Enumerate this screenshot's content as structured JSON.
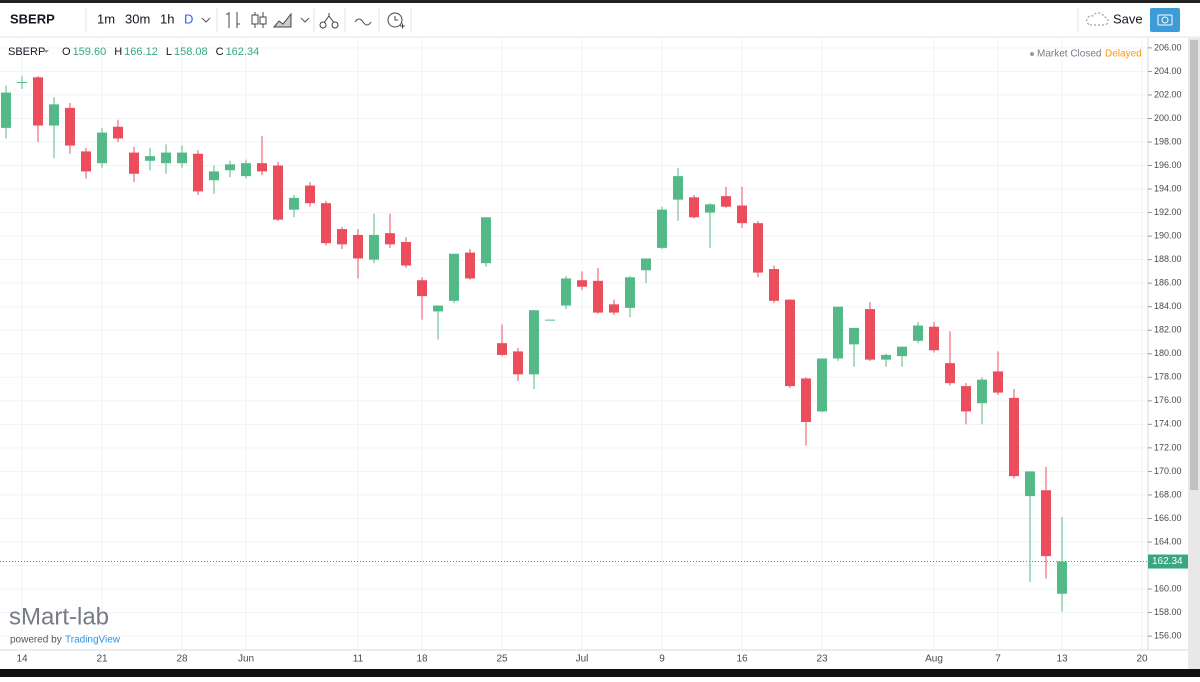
{
  "toolbar": {
    "symbol": "SBERP",
    "intervals": [
      "1m",
      "30m",
      "1h",
      "D"
    ],
    "save": "Save"
  },
  "legend": {
    "symbol": "SBERP",
    "items": [
      {
        "key": "O",
        "value": "159.60"
      },
      {
        "key": "H",
        "value": "166.12"
      },
      {
        "key": "L",
        "value": "158.08"
      },
      {
        "key": "C",
        "value": "162.34"
      }
    ]
  },
  "status": {
    "market": "Market Closed",
    "feed": "Delayed"
  },
  "watermark": {
    "brand": "sMart-lab",
    "powered": "powered by",
    "provider": "TradingView"
  },
  "chart_data": {
    "type": "candlestick",
    "categories": [
      null,
      "14",
      null,
      null,
      null,
      null,
      "21",
      null,
      null,
      null,
      null,
      "28",
      null,
      null,
      null,
      "Jun",
      null,
      null,
      null,
      null,
      null,
      null,
      "11",
      null,
      null,
      null,
      "18",
      null,
      null,
      null,
      null,
      "25",
      null,
      null,
      null,
      null,
      "Jul",
      null,
      null,
      null,
      null,
      "9",
      null,
      null,
      null,
      null,
      "16",
      null,
      null,
      null,
      null,
      "23",
      null,
      null,
      null,
      null,
      null,
      null,
      "Aug",
      null,
      null,
      null,
      "7",
      null,
      null,
      null,
      "13",
      null,
      null,
      null,
      null,
      "20"
    ],
    "open": [
      199.2,
      203.1,
      203.5,
      199.4,
      200.9,
      197.2,
      196.2,
      199.3,
      197.1,
      196.4,
      196.2,
      196.2,
      197.0,
      194.75,
      195.6,
      195.1,
      196.2,
      196.0,
      192.25,
      194.3,
      192.8,
      190.6,
      190.1,
      188.0,
      190.25,
      189.5,
      186.25,
      183.6,
      184.5,
      188.6,
      187.7,
      180.9,
      180.2,
      178.25,
      182.9,
      184.1,
      186.25,
      186.2,
      184.2,
      183.9,
      187.1,
      189.0,
      193.1,
      193.3,
      192.0,
      193.4,
      192.6,
      191.1,
      187.2,
      184.6,
      177.9,
      175.1,
      179.6,
      180.8,
      183.8,
      179.5,
      179.8,
      181.1,
      182.3,
      179.2,
      177.25,
      175.8,
      178.5,
      176.25,
      167.9,
      168.4,
      159.6,
      null,
      null,
      null,
      null,
      null
    ],
    "high": [
      202.8,
      203.6,
      203.6,
      201.8,
      201.3,
      197.5,
      199.2,
      199.9,
      197.6,
      197.5,
      197.8,
      197.7,
      197.3,
      196.0,
      196.4,
      196.5,
      198.5,
      196.3,
      193.5,
      194.6,
      193.0,
      190.8,
      190.6,
      191.9,
      191.9,
      189.9,
      186.5,
      184.1,
      188.5,
      188.9,
      191.6,
      182.5,
      180.5,
      183.7,
      182.9,
      186.6,
      187.0,
      187.3,
      184.6,
      186.6,
      188.1,
      192.5,
      195.8,
      193.5,
      192.8,
      194.2,
      194.2,
      191.3,
      187.5,
      184.6,
      178.0,
      179.6,
      184.0,
      182.2,
      184.4,
      180.0,
      180.6,
      182.7,
      182.7,
      181.9,
      177.5,
      178.0,
      180.2,
      177.0,
      170.0,
      170.4,
      166.12,
      null,
      null,
      null,
      null,
      null
    ],
    "low": [
      198.3,
      202.5,
      198.0,
      196.6,
      197.0,
      194.9,
      195.8,
      198.0,
      194.6,
      195.6,
      195.3,
      195.8,
      193.5,
      193.6,
      195.0,
      194.9,
      195.2,
      191.3,
      191.6,
      192.5,
      189.2,
      188.9,
      186.4,
      187.7,
      189.0,
      187.3,
      182.9,
      181.2,
      184.3,
      186.3,
      187.4,
      179.8,
      177.7,
      177.0,
      182.9,
      183.8,
      185.4,
      183.4,
      183.3,
      183.1,
      186.0,
      188.9,
      191.3,
      191.5,
      189.0,
      192.4,
      190.7,
      186.5,
      184.3,
      177.1,
      172.2,
      175.0,
      179.4,
      178.9,
      179.4,
      178.9,
      178.9,
      180.9,
      180.1,
      177.3,
      174.0,
      174.0,
      176.5,
      169.4,
      160.6,
      160.9,
      158.08,
      null,
      null,
      null,
      null,
      null
    ],
    "close": [
      202.2,
      203.1,
      199.4,
      201.2,
      197.7,
      195.5,
      198.8,
      198.3,
      195.3,
      196.8,
      197.1,
      197.1,
      193.8,
      195.5,
      196.1,
      196.2,
      195.5,
      191.4,
      193.25,
      192.8,
      189.4,
      189.3,
      188.1,
      190.1,
      189.3,
      187.5,
      184.9,
      184.1,
      188.5,
      186.4,
      191.6,
      179.9,
      178.25,
      183.7,
      182.9,
      186.4,
      185.7,
      183.5,
      183.5,
      186.5,
      188.1,
      192.25,
      195.1,
      191.6,
      192.7,
      192.5,
      191.1,
      186.9,
      184.5,
      177.25,
      174.2,
      179.6,
      184.0,
      182.2,
      179.5,
      179.9,
      180.6,
      182.4,
      180.3,
      177.5,
      175.1,
      177.8,
      176.7,
      169.6,
      170.0,
      162.8,
      162.34,
      null,
      null,
      null,
      null,
      null
    ],
    "up_color": "#53b987",
    "down_color": "#eb4d5c",
    "last_price": 162.34,
    "last_price_color": "#37a77f",
    "ylim": [
      155.5,
      206.5
    ],
    "yticks": [
      {
        "value": 156,
        "label": "156.00"
      },
      {
        "value": 158,
        "label": "158.00"
      },
      {
        "value": 160,
        "label": "160.00"
      },
      {
        "value": 162,
        "label": "162.00"
      },
      {
        "value": 164,
        "label": "164.00"
      },
      {
        "value": 166,
        "label": "166.00"
      },
      {
        "value": 168,
        "label": "168.00"
      },
      {
        "value": 170,
        "label": "170.00"
      },
      {
        "value": 172,
        "label": "172.00"
      },
      {
        "value": 174,
        "label": "174.00"
      },
      {
        "value": 176,
        "label": "176.00"
      },
      {
        "value": 178,
        "label": "178.00"
      },
      {
        "value": 180,
        "label": "180.00"
      },
      {
        "value": 182,
        "label": "182.00"
      },
      {
        "value": 184,
        "label": "184.00"
      },
      {
        "value": 186,
        "label": "186.00"
      },
      {
        "value": 188,
        "label": "188.00"
      },
      {
        "value": 190,
        "label": "190.00"
      },
      {
        "value": 192,
        "label": "192.00"
      },
      {
        "value": 194,
        "label": "194.00"
      },
      {
        "value": 196,
        "label": "196.00"
      },
      {
        "value": 198,
        "label": "198.00"
      },
      {
        "value": 200,
        "label": "200.00"
      },
      {
        "value": 202,
        "label": "202.00"
      },
      {
        "value": 204,
        "label": "204.00"
      },
      {
        "value": 206,
        "label": "206.00"
      }
    ],
    "grid": true
  }
}
